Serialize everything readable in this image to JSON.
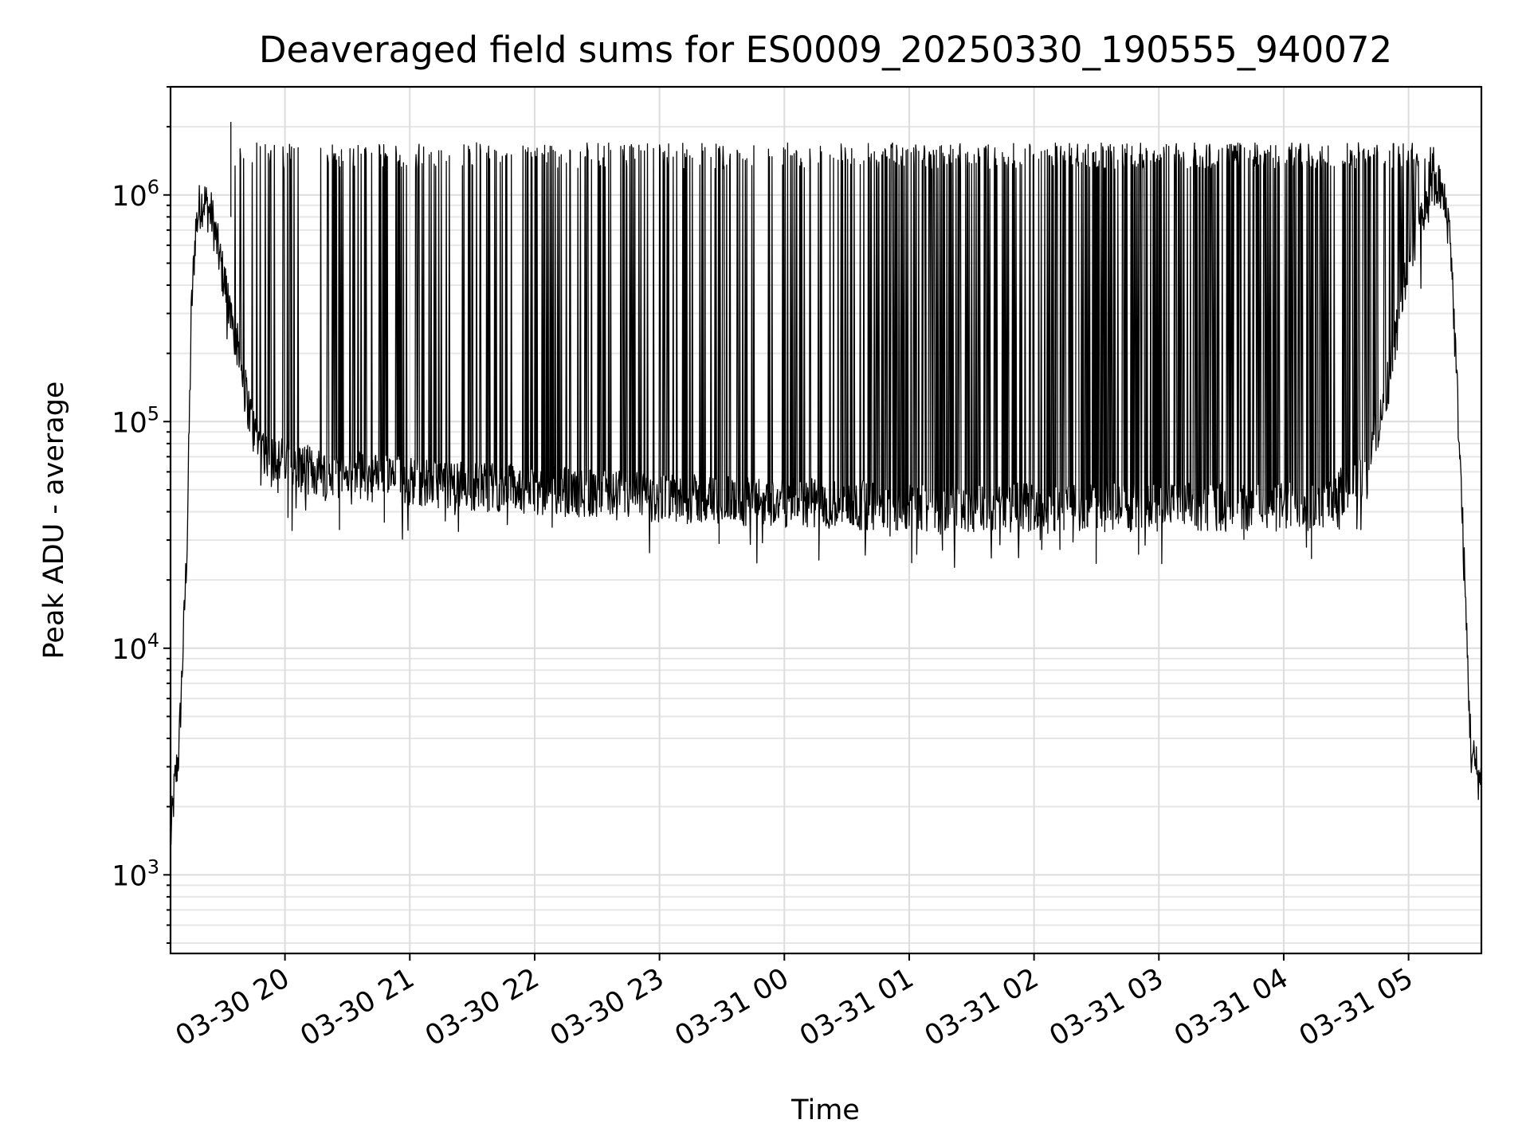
{
  "chart_data": {
    "type": "line",
    "title": "Deaveraged field sums for ES0009_20250330_190555_940072",
    "xlabel": "Time",
    "ylabel": "Peak ADU - average",
    "yscale": "log",
    "ylim": [
      450,
      3000000
    ],
    "xlim": [
      "2025-03-30 19:05",
      "2025-03-31 05:35"
    ],
    "grid": true,
    "legend": "none",
    "x_ticks": [
      {
        "time": "2025-03-30 20:00",
        "label": "03-30 20"
      },
      {
        "time": "2025-03-30 21:00",
        "label": "03-30 21"
      },
      {
        "time": "2025-03-30 22:00",
        "label": "03-30 22"
      },
      {
        "time": "2025-03-30 23:00",
        "label": "03-30 23"
      },
      {
        "time": "2025-03-31 00:00",
        "label": "03-31 00"
      },
      {
        "time": "2025-03-31 01:00",
        "label": "03-31 01"
      },
      {
        "time": "2025-03-31 02:00",
        "label": "03-31 02"
      },
      {
        "time": "2025-03-31 03:00",
        "label": "03-31 03"
      },
      {
        "time": "2025-03-31 04:00",
        "label": "03-31 04"
      },
      {
        "time": "2025-03-31 05:00",
        "label": "03-31 05"
      }
    ],
    "y_ticks": [
      {
        "value": 1000,
        "base": "10",
        "exp": "3"
      },
      {
        "value": 10000,
        "base": "10",
        "exp": "4"
      },
      {
        "value": 100000,
        "base": "10",
        "exp": "5"
      },
      {
        "value": 1000000,
        "base": "10",
        "exp": "6"
      }
    ],
    "color": "#000000",
    "series": [
      {
        "envelope": {
          "x": [
            "2025-03-30 19:05",
            "2025-03-30 19:07",
            "2025-03-30 19:09",
            "2025-03-30 19:11",
            "2025-03-30 19:13",
            "2025-03-30 19:15",
            "2025-03-30 19:17",
            "2025-03-30 19:19",
            "2025-03-30 19:21",
            "2025-03-30 19:25",
            "2025-03-30 19:30",
            "2025-03-30 19:35",
            "2025-03-30 19:40",
            "2025-03-30 19:45",
            "2025-03-30 19:50",
            "2025-03-30 20:00",
            "2025-03-30 20:15",
            "2025-03-30 20:30",
            "2025-03-30 21:00",
            "2025-03-30 21:30",
            "2025-03-30 22:00",
            "2025-03-30 22:30",
            "2025-03-30 23:00",
            "2025-03-30 23:30",
            "2025-03-31 00:00",
            "2025-03-31 00:30",
            "2025-03-31 01:00",
            "2025-03-31 01:30",
            "2025-03-31 02:00",
            "2025-03-31 02:30",
            "2025-03-31 03:00",
            "2025-03-31 03:30",
            "2025-03-31 04:00",
            "2025-03-31 04:20",
            "2025-03-31 04:40",
            "2025-03-31 04:50",
            "2025-03-31 05:00",
            "2025-03-31 05:10",
            "2025-03-31 05:15",
            "2025-03-31 05:20",
            "2025-03-31 05:25",
            "2025-03-31 05:30",
            "2025-03-31 05:35"
          ],
          "y": [
            1400,
            2500,
            3500,
            10000,
            30000,
            300000,
            700000,
            900000,
            950000,
            800000,
            450000,
            280000,
            150000,
            90000,
            75000,
            65000,
            60000,
            58000,
            55000,
            52000,
            50000,
            48000,
            46000,
            45000,
            44000,
            43000,
            42000,
            42000,
            42000,
            42000,
            42000,
            42000,
            42000,
            43000,
            60000,
            150000,
            500000,
            1000000,
            1100000,
            700000,
            60000,
            3500,
            2500
          ]
        },
        "spikes": {
          "peak_range": [
            1300000,
            1700000
          ],
          "max_peak": 2100000,
          "min_dip": 22000
        }
      }
    ]
  }
}
